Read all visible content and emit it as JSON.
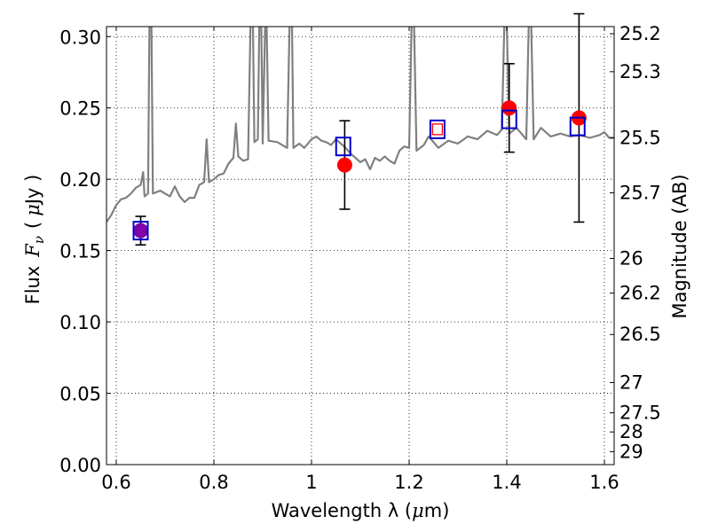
{
  "chart_data": {
    "type": "line",
    "xlabel_text": "Wavelength  λ (",
    "xlabel_unit_mu": "μ",
    "xlabel_unit_rest": "m)",
    "ylabel_flux": "Flux",
    "ylabel_F": "F",
    "ylabel_nu": "ν",
    "ylabel_open": "(",
    "ylabel_mu": "μ",
    "ylabel_unit": "Jy )",
    "y2label": "Magnitude (AB)",
    "xlim": [
      0.58,
      1.62
    ],
    "ylim": [
      0.0,
      0.307
    ],
    "grid": true,
    "x_ticks": [
      {
        "value": 0.6,
        "label": "0.6"
      },
      {
        "value": 0.8,
        "label": "0.8"
      },
      {
        "value": 1.0,
        "label": "1"
      },
      {
        "value": 1.2,
        "label": "1.2"
      },
      {
        "value": 1.4,
        "label": "1.4"
      },
      {
        "value": 1.6,
        "label": "1.6"
      }
    ],
    "y_ticks": [
      {
        "value": 0.0,
        "label": "0.00"
      },
      {
        "value": 0.05,
        "label": "0.05"
      },
      {
        "value": 0.1,
        "label": "0.10"
      },
      {
        "value": 0.15,
        "label": "0.15"
      },
      {
        "value": 0.2,
        "label": "0.20"
      },
      {
        "value": 0.25,
        "label": "0.25"
      },
      {
        "value": 0.3,
        "label": "0.30"
      }
    ],
    "mag_ticks": [
      {
        "flux": 0.302,
        "label": "25.2"
      },
      {
        "flux": 0.2754,
        "label": "25.3"
      },
      {
        "flux": 0.2291,
        "label": "25.5"
      },
      {
        "flux": 0.1905,
        "label": "25.7"
      },
      {
        "flux": 0.1445,
        "label": "26"
      },
      {
        "flux": 0.1202,
        "label": "26.2"
      },
      {
        "flux": 0.0912,
        "label": "26.5"
      },
      {
        "flux": 0.0575,
        "label": "27"
      },
      {
        "flux": 0.0363,
        "label": "27.5"
      },
      {
        "flux": 0.0229,
        "label": "28"
      },
      {
        "flux": 0.0091,
        "label": "29"
      }
    ],
    "model_spectrum": {
      "color": "#808080",
      "points": [
        [
          0.58,
          0.17
        ],
        [
          0.59,
          0.175
        ],
        [
          0.6,
          0.182
        ],
        [
          0.61,
          0.186
        ],
        [
          0.62,
          0.187
        ],
        [
          0.63,
          0.19
        ],
        [
          0.64,
          0.194
        ],
        [
          0.65,
          0.196
        ],
        [
          0.655,
          0.205
        ],
        [
          0.658,
          0.188
        ],
        [
          0.665,
          0.19
        ],
        [
          0.668,
          0.31
        ],
        [
          0.672,
          0.31
        ],
        [
          0.675,
          0.19
        ],
        [
          0.69,
          0.192
        ],
        [
          0.7,
          0.19
        ],
        [
          0.71,
          0.188
        ],
        [
          0.72,
          0.195
        ],
        [
          0.73,
          0.188
        ],
        [
          0.74,
          0.184
        ],
        [
          0.75,
          0.187
        ],
        [
          0.76,
          0.187
        ],
        [
          0.77,
          0.196
        ],
        [
          0.78,
          0.198
        ],
        [
          0.785,
          0.228
        ],
        [
          0.79,
          0.198
        ],
        [
          0.8,
          0.2
        ],
        [
          0.81,
          0.203
        ],
        [
          0.82,
          0.204
        ],
        [
          0.83,
          0.211
        ],
        [
          0.84,
          0.215
        ],
        [
          0.845,
          0.239
        ],
        [
          0.85,
          0.216
        ],
        [
          0.86,
          0.213
        ],
        [
          0.87,
          0.214
        ],
        [
          0.875,
          0.31
        ],
        [
          0.88,
          0.31
        ],
        [
          0.883,
          0.226
        ],
        [
          0.89,
          0.228
        ],
        [
          0.893,
          0.31
        ],
        [
          0.897,
          0.31
        ],
        [
          0.9,
          0.225
        ],
        [
          0.905,
          0.31
        ],
        [
          0.908,
          0.31
        ],
        [
          0.912,
          0.227
        ],
        [
          0.93,
          0.226
        ],
        [
          0.94,
          0.224
        ],
        [
          0.95,
          0.222
        ],
        [
          0.955,
          0.31
        ],
        [
          0.96,
          0.31
        ],
        [
          0.963,
          0.222
        ],
        [
          0.975,
          0.225
        ],
        [
          0.985,
          0.222
        ],
        [
          1.0,
          0.228
        ],
        [
          1.01,
          0.23
        ],
        [
          1.02,
          0.227
        ],
        [
          1.03,
          0.226
        ],
        [
          1.04,
          0.224
        ],
        [
          1.05,
          0.228
        ],
        [
          1.06,
          0.225
        ],
        [
          1.07,
          0.222
        ],
        [
          1.08,
          0.218
        ],
        [
          1.09,
          0.215
        ],
        [
          1.1,
          0.212
        ],
        [
          1.11,
          0.214
        ],
        [
          1.12,
          0.207
        ],
        [
          1.13,
          0.215
        ],
        [
          1.14,
          0.213
        ],
        [
          1.15,
          0.216
        ],
        [
          1.16,
          0.213
        ],
        [
          1.17,
          0.211
        ],
        [
          1.18,
          0.22
        ],
        [
          1.19,
          0.223
        ],
        [
          1.2,
          0.222
        ],
        [
          1.205,
          0.31
        ],
        [
          1.21,
          0.31
        ],
        [
          1.215,
          0.22
        ],
        [
          1.23,
          0.224
        ],
        [
          1.24,
          0.23
        ],
        [
          1.26,
          0.222
        ],
        [
          1.28,
          0.227
        ],
        [
          1.3,
          0.225
        ],
        [
          1.32,
          0.23
        ],
        [
          1.34,
          0.228
        ],
        [
          1.36,
          0.234
        ],
        [
          1.38,
          0.231
        ],
        [
          1.39,
          0.235
        ],
        [
          1.395,
          0.31
        ],
        [
          1.4,
          0.31
        ],
        [
          1.405,
          0.232
        ],
        [
          1.42,
          0.236
        ],
        [
          1.44,
          0.228
        ],
        [
          1.445,
          0.31
        ],
        [
          1.45,
          0.31
        ],
        [
          1.455,
          0.228
        ],
        [
          1.47,
          0.236
        ],
        [
          1.49,
          0.23
        ],
        [
          1.51,
          0.232
        ],
        [
          1.53,
          0.23
        ],
        [
          1.55,
          0.231
        ],
        [
          1.57,
          0.229
        ],
        [
          1.59,
          0.231
        ],
        [
          1.6,
          0.233
        ],
        [
          1.61,
          0.229
        ],
        [
          1.62,
          0.229
        ]
      ]
    },
    "model_photometry": {
      "marker": "open-square",
      "color": "#0000cc",
      "points": [
        {
          "x": 0.65,
          "y": 0.164
        },
        {
          "x": 1.065,
          "y": 0.223
        },
        {
          "x": 1.405,
          "y": 0.242
        },
        {
          "x": 1.545,
          "y": 0.237
        }
      ]
    },
    "observed_photometry": {
      "marker": "filled-circle",
      "color": "#ff0000",
      "errorbar_color": "#000000",
      "points": [
        {
          "x": 0.65,
          "y": 0.164,
          "yerr": 0.01
        },
        {
          "x": 1.068,
          "y": 0.21,
          "yerr": 0.031
        },
        {
          "x": 1.405,
          "y": 0.25,
          "yerr": 0.031
        },
        {
          "x": 1.548,
          "y": 0.243,
          "yerr": 0.073
        }
      ]
    },
    "extra_point": {
      "marker": "open-square",
      "outer_color": "#0000cc",
      "inner_color": "#ff0000",
      "x": 1.258,
      "y": 0.235
    },
    "overlap_fill_color": "#8000aa"
  }
}
